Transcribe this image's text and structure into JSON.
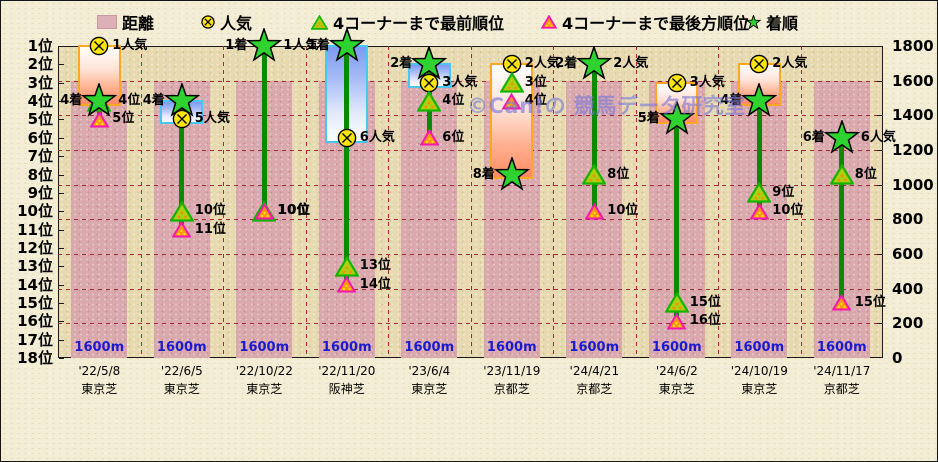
{
  "legend": {
    "items": [
      {
        "label": "距離",
        "marker": "distance-swatch"
      },
      {
        "label": "人気",
        "marker": "popularity-circled-x"
      },
      {
        "label": "4コーナーまで最前順位",
        "marker": "front-green-triangle"
      },
      {
        "label": "4コーナーまで最後方順位",
        "marker": "rear-red-triangle"
      },
      {
        "label": "着順",
        "marker": "finish-green-star"
      }
    ]
  },
  "watermark": "©Can!の 競馬データ研究室",
  "colors": {
    "bar_pink": "#d9a9ae",
    "grid_maroon": "#9c2b36",
    "line_green": "#0b8a00",
    "star_green": "#2fd32f",
    "popularity_yellow": "#ffe60a",
    "front_triangle": "#abcf12",
    "rear_triangle": "#ff9418",
    "worse_box_border": "#ffa722",
    "better_box_border": "#46c8f2",
    "distance_label_blue": "#1a1ad0"
  },
  "chart_data": {
    "type": "scatter",
    "title": "",
    "left_axis": {
      "labels": [
        "1位",
        "2位",
        "3位",
        "4位",
        "5位",
        "6位",
        "7位",
        "8位",
        "9位",
        "10位",
        "11位",
        "12位",
        "13位",
        "14位",
        "15位",
        "16位",
        "17位",
        "18位"
      ]
    },
    "right_axis": {
      "min": 0,
      "max": 1800,
      "step": 200,
      "labels": [
        "1800",
        "1600",
        "1400",
        "1200",
        "1000",
        "800",
        "600",
        "400",
        "200",
        "0"
      ]
    },
    "grid": {
      "horizontal_step_value": 200,
      "vertical_per_slot": true
    },
    "races": [
      {
        "date": "'22/5/8",
        "track": "東京芝",
        "distance_m": 1600,
        "distance_label": "1600m",
        "popularity": 1,
        "finish": 4,
        "front": 4,
        "back": 5,
        "popularity_marker_visible": true,
        "range_box": {
          "trend": "worse",
          "from": 1,
          "to": 4
        },
        "line": {
          "from": 4,
          "to": 5
        },
        "labels": [
          {
            "text": "4着",
            "pos": 4,
            "side": "l"
          },
          {
            "text": "1人気",
            "pos": 1,
            "side": "r"
          },
          {
            "text": "4位",
            "pos": 4,
            "side": "r"
          },
          {
            "text": "5位",
            "pos": 5,
            "side": "r"
          }
        ]
      },
      {
        "date": "'22/6/5",
        "track": "東京芝",
        "distance_m": 1600,
        "distance_label": "1600m",
        "popularity": 5,
        "finish": 4,
        "front": 10,
        "back": 11,
        "popularity_marker_visible": true,
        "range_box": {
          "trend": "better",
          "from": 4,
          "to": 5
        },
        "line": {
          "from": 4,
          "to": 11
        },
        "labels": [
          {
            "text": "4着",
            "pos": 4,
            "side": "l"
          },
          {
            "text": "5人気",
            "pos": 5,
            "side": "r"
          },
          {
            "text": "10位",
            "pos": 10,
            "side": "r"
          },
          {
            "text": "11位",
            "pos": 11,
            "side": "r"
          }
        ]
      },
      {
        "date": "'22/10/22",
        "track": "東京芝",
        "distance_m": 1600,
        "distance_label": "1600m",
        "popularity": 1,
        "finish": 1,
        "front": 10,
        "back": 10,
        "popularity_marker_visible": false,
        "range_box": null,
        "line": {
          "from": 1,
          "to": 10
        },
        "labels": [
          {
            "text": "1着",
            "pos": 1,
            "side": "l"
          },
          {
            "text": "1人気",
            "pos": 1,
            "side": "r"
          },
          {
            "text": "10位",
            "pos": 10,
            "side": "r",
            "strong": true
          }
        ]
      },
      {
        "date": "'22/11/20",
        "track": "阪神芝",
        "distance_m": 1600,
        "distance_label": "1600m",
        "popularity": 6,
        "finish": 1,
        "front": 13,
        "back": 14,
        "popularity_marker_visible": true,
        "range_box": {
          "trend": "better",
          "from": 1,
          "to": 6
        },
        "line": {
          "from": 1,
          "to": 14
        },
        "labels": [
          {
            "text": "1着",
            "pos": 1,
            "side": "l"
          },
          {
            "text": "6人気",
            "pos": 6,
            "side": "r"
          },
          {
            "text": "13位",
            "pos": 13,
            "side": "r"
          },
          {
            "text": "14位",
            "pos": 14,
            "side": "r"
          }
        ]
      },
      {
        "date": "'23/6/4",
        "track": "東京芝",
        "distance_m": 1600,
        "distance_label": "1600m",
        "popularity": 3,
        "finish": 2,
        "front": 4,
        "back": 6,
        "popularity_marker_visible": true,
        "range_box": {
          "trend": "better",
          "from": 2,
          "to": 3
        },
        "line": {
          "from": 2,
          "to": 6
        },
        "labels": [
          {
            "text": "2着",
            "pos": 2,
            "side": "l"
          },
          {
            "text": "3人気",
            "pos": 3,
            "side": "r"
          },
          {
            "text": "4位",
            "pos": 4,
            "side": "r"
          },
          {
            "text": "6位",
            "pos": 6,
            "side": "r"
          }
        ]
      },
      {
        "date": "'23/11/19",
        "track": "京都芝",
        "distance_m": 1600,
        "distance_label": "1600m",
        "popularity": 2,
        "finish": 8,
        "front": 3,
        "back": 4,
        "popularity_marker_visible": true,
        "range_box": {
          "trend": "worse",
          "from": 2,
          "to": 8
        },
        "line": null,
        "labels": [
          {
            "text": "8着",
            "pos": 8,
            "side": "l"
          },
          {
            "text": "2人気",
            "pos": 2,
            "side": "r"
          },
          {
            "text": "3位",
            "pos": 3,
            "side": "r"
          },
          {
            "text": "4位",
            "pos": 4,
            "side": "r"
          }
        ]
      },
      {
        "date": "'24/4/21",
        "track": "京都芝",
        "distance_m": 1600,
        "distance_label": "1600m",
        "popularity": 2,
        "finish": 2,
        "front": 8,
        "back": 10,
        "popularity_marker_visible": false,
        "range_box": null,
        "line": {
          "from": 2,
          "to": 10
        },
        "labels": [
          {
            "text": "2着",
            "pos": 2,
            "side": "l"
          },
          {
            "text": "2人気",
            "pos": 2,
            "side": "r"
          },
          {
            "text": "8位",
            "pos": 8,
            "side": "r"
          },
          {
            "text": "10位",
            "pos": 10,
            "side": "r"
          }
        ]
      },
      {
        "date": "'24/6/2",
        "track": "東京芝",
        "distance_m": 1600,
        "distance_label": "1600m",
        "popularity": 3,
        "finish": 5,
        "front": 15,
        "back": 16,
        "popularity_marker_visible": true,
        "range_box": {
          "trend": "worse",
          "from": 3,
          "to": 5
        },
        "line": {
          "from": 5,
          "to": 16
        },
        "labels": [
          {
            "text": "5着",
            "pos": 5,
            "side": "l"
          },
          {
            "text": "3人気",
            "pos": 3,
            "side": "r"
          },
          {
            "text": "15位",
            "pos": 15,
            "side": "r"
          },
          {
            "text": "16位",
            "pos": 16,
            "side": "r"
          }
        ]
      },
      {
        "date": "'24/10/19",
        "track": "東京芝",
        "distance_m": 1600,
        "distance_label": "1600m",
        "popularity": 2,
        "finish": 4,
        "front": 9,
        "back": 10,
        "popularity_marker_visible": true,
        "range_box": {
          "trend": "worse",
          "from": 2,
          "to": 4
        },
        "line": {
          "from": 4,
          "to": 10
        },
        "labels": [
          {
            "text": "4着",
            "pos": 4,
            "side": "l"
          },
          {
            "text": "2人気",
            "pos": 2,
            "side": "r"
          },
          {
            "text": "9位",
            "pos": 9,
            "side": "r"
          },
          {
            "text": "10位",
            "pos": 10,
            "side": "r"
          }
        ]
      },
      {
        "date": "'24/11/17",
        "track": "京都芝",
        "distance_m": 1600,
        "distance_label": "1600m",
        "popularity": 6,
        "finish": 6,
        "front": 8,
        "back": 15,
        "popularity_marker_visible": false,
        "range_box": null,
        "line": {
          "from": 6,
          "to": 15
        },
        "labels": [
          {
            "text": "6着",
            "pos": 6,
            "side": "l"
          },
          {
            "text": "6人気",
            "pos": 6,
            "side": "r"
          },
          {
            "text": "8位",
            "pos": 8,
            "side": "r"
          },
          {
            "text": "15位",
            "pos": 15,
            "side": "r"
          }
        ]
      }
    ]
  }
}
